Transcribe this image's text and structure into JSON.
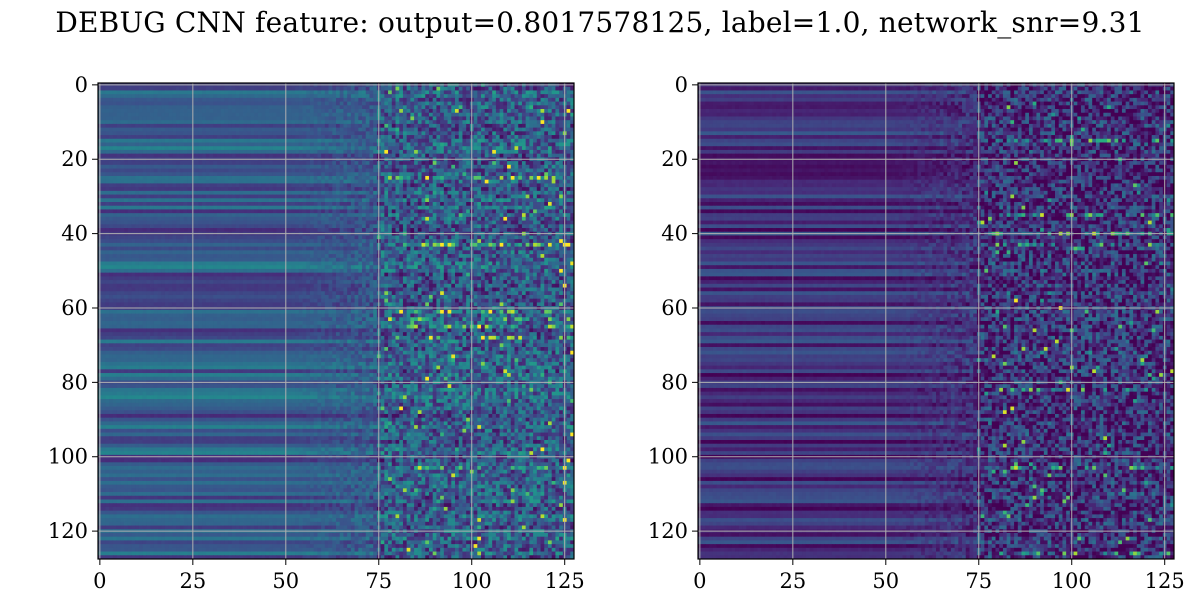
{
  "figure": {
    "title": "DEBUG CNN feature: output=0.8017578125, label=1.0, network_snr=9.31"
  },
  "chart_data": [
    {
      "type": "heatmap",
      "colormap": "viridis",
      "title": "",
      "xlabel": "",
      "ylabel": "",
      "grid": true,
      "grid_color": "#b0b0b0",
      "dimensions": [
        128,
        128
      ],
      "xlim": [
        -0.5,
        127.5
      ],
      "ylim": [
        127.5,
        -0.5
      ],
      "xticks": [
        0,
        25,
        50,
        75,
        100,
        125
      ],
      "xtick_labels": [
        "0",
        "25",
        "50",
        "75",
        "100",
        "125"
      ],
      "yticks": [
        0,
        20,
        40,
        60,
        80,
        100,
        120
      ],
      "ytick_labels": [
        "0",
        "20",
        "40",
        "60",
        "80",
        "100",
        "120"
      ],
      "value_pattern": {
        "columns_0_50": "smooth horizontal bands, mid values (~0.2-0.35)",
        "columns_50_75": "bands fading into speckle",
        "columns_75_127": "high-variance speckle with bright yellow outliers",
        "bright_rows": [
          25,
          43,
          61,
          63,
          65,
          68,
          103
        ]
      }
    },
    {
      "type": "heatmap",
      "colormap": "viridis",
      "title": "",
      "xlabel": "",
      "ylabel": "",
      "grid": true,
      "grid_color": "#b0b0b0",
      "dimensions": [
        128,
        128
      ],
      "xlim": [
        -0.5,
        127.5
      ],
      "ylim": [
        127.5,
        -0.5
      ],
      "xticks": [
        0,
        25,
        50,
        75,
        100,
        125
      ],
      "xtick_labels": [
        "0",
        "25",
        "50",
        "75",
        "100",
        "125"
      ],
      "yticks": [
        0,
        20,
        40,
        60,
        80,
        100,
        120
      ],
      "ytick_labels": [
        "0",
        "20",
        "40",
        "60",
        "80",
        "100",
        "120"
      ],
      "value_pattern": {
        "columns_0_50": "dark horizontal bands, low values (~0.05-0.2)",
        "columns_50_75": "dark, gradually noisier",
        "columns_75_127": "speckle with scattered bright points",
        "bright_rows": [
          15,
          35,
          40,
          43,
          82,
          103,
          126
        ]
      }
    }
  ]
}
